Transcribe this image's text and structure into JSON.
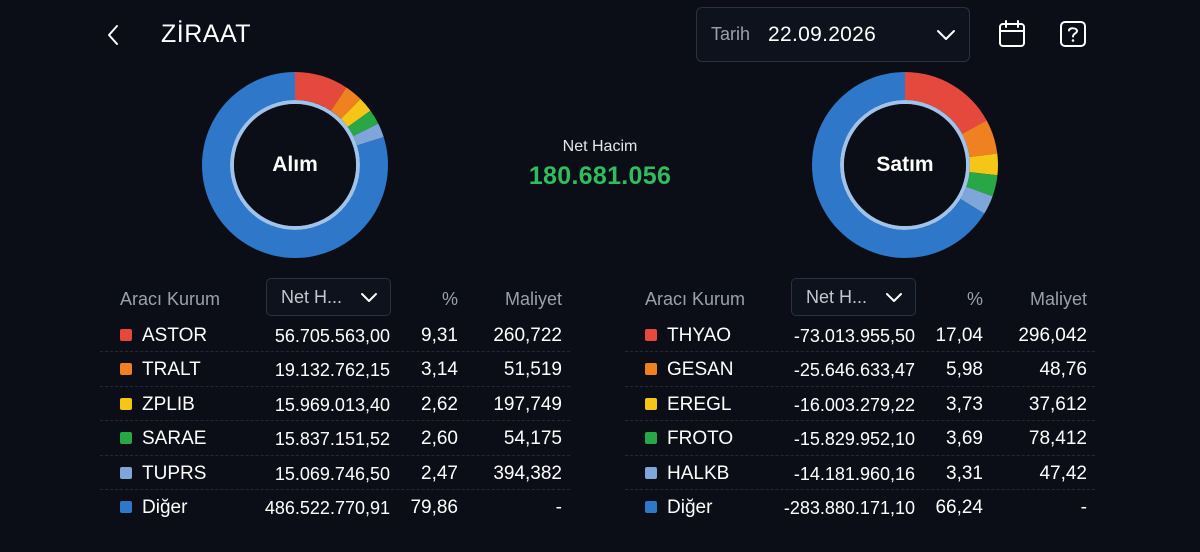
{
  "header": {
    "title": "ZİRAAT",
    "date_label": "Tarih",
    "date_value": "22.09.2026"
  },
  "icons": {
    "back": "chevron-left-icon",
    "date_dropdown": "chevron-down-icon",
    "calendar": "calendar-icon",
    "help": "help-icon"
  },
  "summary": {
    "net_label": "Net Hacim",
    "net_value": "180.681.056",
    "net_color": "#2ebd5f"
  },
  "colors": {
    "background": "#0b0e17",
    "red": "#e5483d",
    "orange": "#ef8121",
    "yellow": "#f5c518",
    "green": "#27a745",
    "lightblue": "#7fa6d9",
    "blue": "#2e77c9"
  },
  "chart_data": [
    {
      "type": "pie",
      "title": "Alım",
      "categories": [
        "ASTOR",
        "TRALT",
        "ZPLIB",
        "SARAE",
        "TUPRS",
        "Diğer"
      ],
      "values": [
        9.31,
        3.14,
        2.62,
        2.6,
        2.47,
        79.86
      ],
      "colors": [
        "#e5483d",
        "#ef8121",
        "#f5c518",
        "#27a745",
        "#7fa6d9",
        "#2e77c9"
      ]
    },
    {
      "type": "pie",
      "title": "Satım",
      "categories": [
        "THYAO",
        "GESAN",
        "EREGL",
        "FROTO",
        "HALKB",
        "Diğer"
      ],
      "values": [
        17.04,
        5.98,
        3.73,
        3.69,
        3.31,
        66.24
      ],
      "colors": [
        "#e5483d",
        "#ef8121",
        "#f5c518",
        "#27a745",
        "#7fa6d9",
        "#2e77c9"
      ]
    }
  ],
  "buy_table": {
    "headers": {
      "broker": "Aracı Kurum",
      "sort": "Net H...",
      "pct": "%",
      "cost": "Maliyet"
    },
    "rows": [
      {
        "name": "ASTOR",
        "value": "56.705.563,00",
        "pct": "9,31",
        "cost": "260,722",
        "color": "#e5483d"
      },
      {
        "name": "TRALT",
        "value": "19.132.762,15",
        "pct": "3,14",
        "cost": "51,519",
        "color": "#ef8121"
      },
      {
        "name": "ZPLIB",
        "value": "15.969.013,40",
        "pct": "2,62",
        "cost": "197,749",
        "color": "#f5c518"
      },
      {
        "name": "SARAE",
        "value": "15.837.151,52",
        "pct": "2,60",
        "cost": "54,175",
        "color": "#27a745"
      },
      {
        "name": "TUPRS",
        "value": "15.069.746,50",
        "pct": "2,47",
        "cost": "394,382",
        "color": "#7fa6d9"
      },
      {
        "name": "Diğer",
        "value": "486.522.770,91",
        "pct": "79,86",
        "cost": "-",
        "color": "#2e77c9"
      }
    ]
  },
  "sell_table": {
    "headers": {
      "broker": "Aracı Kurum",
      "sort": "Net H...",
      "pct": "%",
      "cost": "Maliyet"
    },
    "rows": [
      {
        "name": "THYAO",
        "value": "-73.013.955,50",
        "pct": "17,04",
        "cost": "296,042",
        "color": "#e5483d"
      },
      {
        "name": "GESAN",
        "value": "-25.646.633,47",
        "pct": "5,98",
        "cost": "48,76",
        "color": "#ef8121"
      },
      {
        "name": "EREGL",
        "value": "-16.003.279,22",
        "pct": "3,73",
        "cost": "37,612",
        "color": "#f5c518"
      },
      {
        "name": "FROTO",
        "value": "-15.829.952,10",
        "pct": "3,69",
        "cost": "78,412",
        "color": "#27a745"
      },
      {
        "name": "HALKB",
        "value": "-14.181.960,16",
        "pct": "3,31",
        "cost": "47,42",
        "color": "#7fa6d9"
      },
      {
        "name": "Diğer",
        "value": "-283.880.171,10",
        "pct": "66,24",
        "cost": "-",
        "color": "#2e77c9"
      }
    ]
  }
}
